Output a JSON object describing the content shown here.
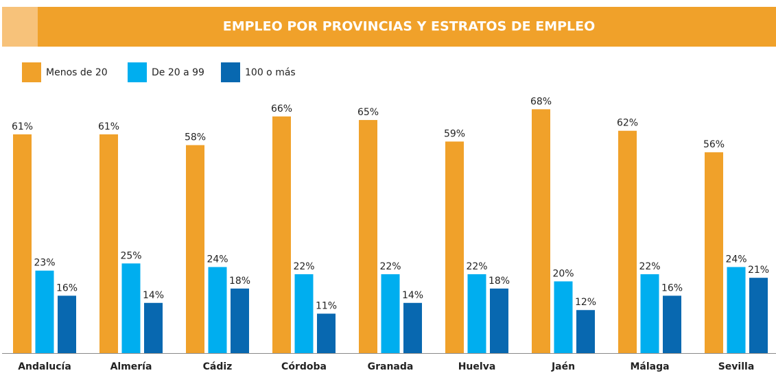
{
  "chart_data": {
    "type": "bar",
    "title": "EMPLEO POR PROVINCIAS Y ESTRATOS DE EMPLEO",
    "categories": [
      "Andalucía",
      "Almería",
      "Cádiz",
      "Córdoba",
      "Granada",
      "Huelva",
      "Jaén",
      "Málaga",
      "Sevilla"
    ],
    "series": [
      {
        "name": "Menos de 20",
        "color": "#f0a12a",
        "values": [
          61,
          61,
          58,
          66,
          65,
          59,
          68,
          62,
          56
        ],
        "value_labels": [
          "61%",
          "61%",
          "58%",
          "66%",
          "65%",
          "59%",
          "68%",
          "62%",
          "56%"
        ]
      },
      {
        "name": "De 20 a 99",
        "color": "#00aeef",
        "values": [
          23,
          25,
          24,
          22,
          22,
          22,
          20,
          22,
          24
        ],
        "value_labels": [
          "23%",
          "25%",
          "24%",
          "22%",
          "22%",
          "22%",
          "20%",
          "22%",
          "24%"
        ]
      },
      {
        "name": "100 o más",
        "color": "#0868b0",
        "values": [
          16,
          14,
          18,
          11,
          14,
          18,
          12,
          16,
          21
        ],
        "value_labels": [
          "16%",
          "14%",
          "18%",
          "11%",
          "14%",
          "18%",
          "12%",
          "16%",
          "21%"
        ]
      }
    ]
  }
}
